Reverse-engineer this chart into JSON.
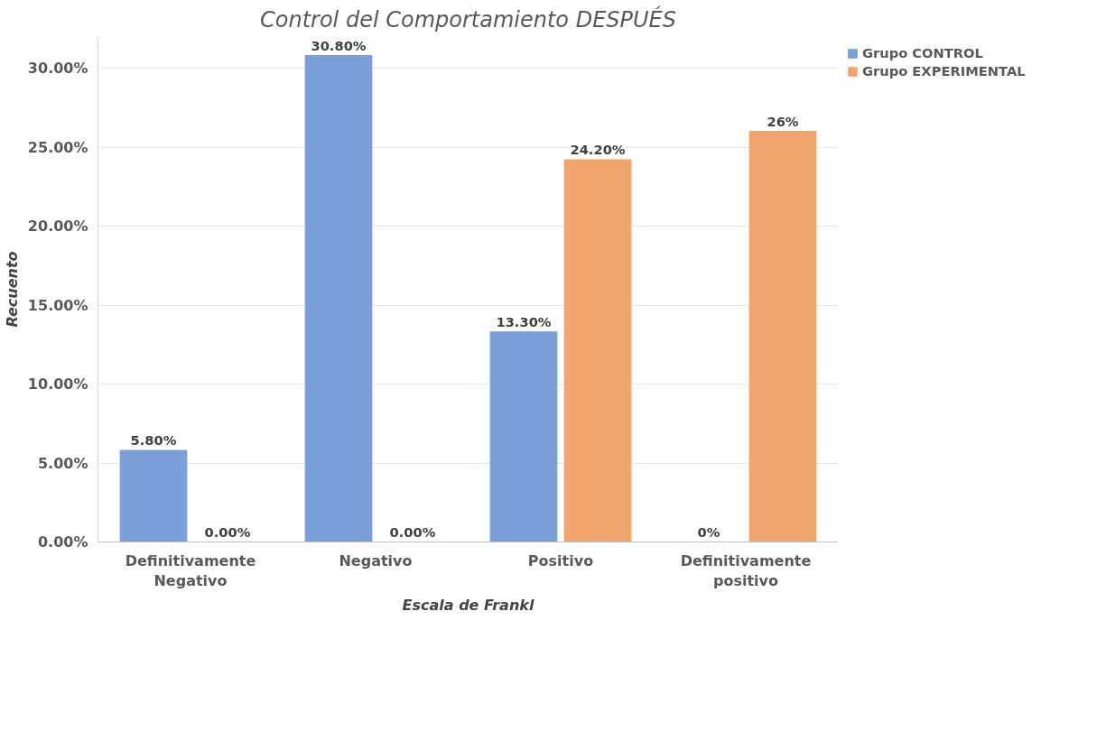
{
  "chart_data": {
    "type": "bar",
    "title": "Control del Comportamiento DESPUÉS",
    "xlabel": "Escala de Frankl",
    "ylabel": "Recuento",
    "categories": [
      "Definitivamente Negativo",
      "Negativo",
      "Positivo",
      "Definitivamente positivo"
    ],
    "series": [
      {
        "name": "Grupo CONTROL",
        "color": "#7b9fd6",
        "values": [
          5.8,
          30.8,
          13.3,
          0
        ],
        "value_labels": [
          "5.80%",
          "30.80%",
          "13.30%",
          "0%"
        ]
      },
      {
        "name": "Grupo EXPERIMENTAL",
        "color": "#f0a56f",
        "values": [
          0,
          0,
          24.2,
          26
        ],
        "value_labels": [
          "0.00%",
          "0.00%",
          "24.20%",
          "26%"
        ]
      }
    ],
    "ylim": [
      0,
      32
    ],
    "yticks": [
      {
        "value": 0,
        "label": "0.00%"
      },
      {
        "value": 5,
        "label": "5.00%"
      },
      {
        "value": 10,
        "label": "10.00%"
      },
      {
        "value": 15,
        "label": "15.00%"
      },
      {
        "value": 20,
        "label": "20.00%"
      },
      {
        "value": 25,
        "label": "25.00%"
      },
      {
        "value": 30,
        "label": "30.00%"
      }
    ],
    "grid": "y",
    "legend": "right"
  }
}
